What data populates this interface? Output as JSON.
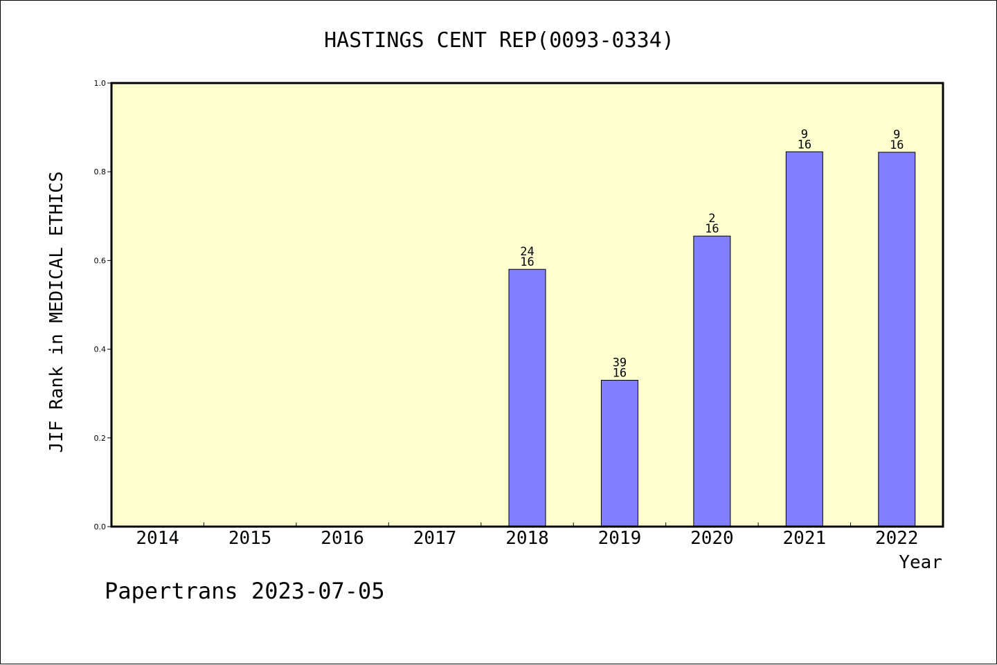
{
  "chart_data": {
    "type": "bar",
    "title": "HASTINGS CENT REP(0093-0334)",
    "xlabel": "Year",
    "ylabel": "JIF Rank in MEDICAL ETHICS",
    "footer": "Papertrans 2023-07-05",
    "categories": [
      "2014",
      "2015",
      "2016",
      "2017",
      "2018",
      "2019",
      "2020",
      "2021",
      "2022"
    ],
    "values": [
      null,
      null,
      null,
      null,
      0.58,
      0.33,
      0.655,
      0.845,
      0.844
    ],
    "data_labels": [
      null,
      null,
      null,
      null,
      {
        "top": "24",
        "bottom": "16"
      },
      {
        "top": "39",
        "bottom": "16"
      },
      {
        "top": "2",
        "bottom": "16"
      },
      {
        "top": "9",
        "bottom": "16"
      },
      {
        "top": "9",
        "bottom": "16"
      }
    ],
    "ylim": [
      0,
      1.0
    ],
    "yticks": [
      "0.0",
      "0.2",
      "0.4",
      "0.6",
      "0.8",
      "1.0"
    ],
    "grid": false,
    "legend": "none",
    "colors": {
      "plot_background": "#ffffd0",
      "bar_fill": "#8080ff",
      "bar_stroke": "#000000",
      "axis": "#000000"
    }
  }
}
